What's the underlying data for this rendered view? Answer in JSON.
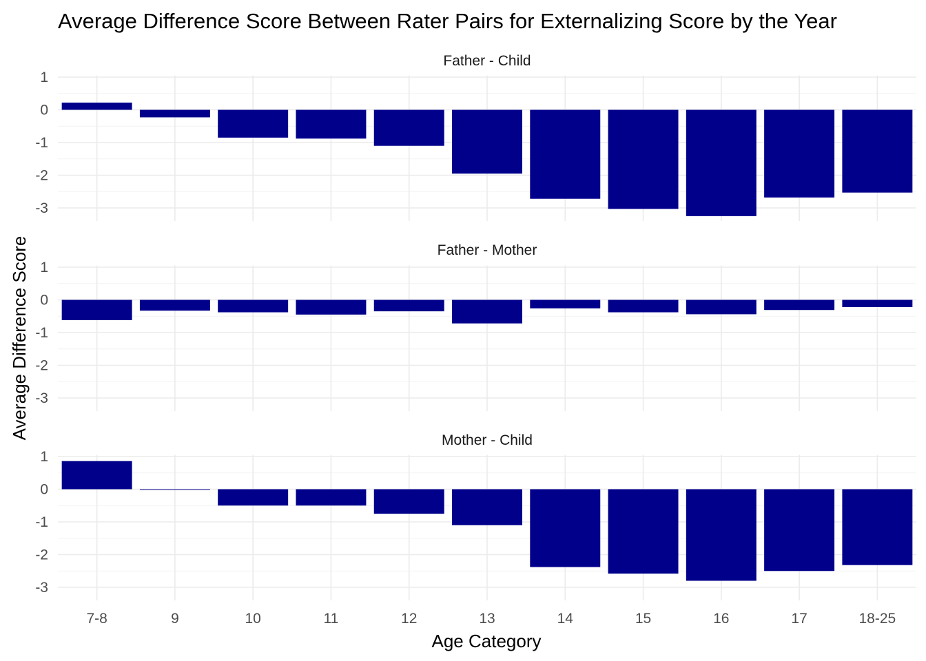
{
  "chart_data": {
    "type": "bar",
    "title": "Average Difference Score Between Rater Pairs for  Externalizing Score by the Year",
    "xlabel": "Age Category",
    "ylabel": "Average Difference Score",
    "categories": [
      "7-8",
      "9",
      "10",
      "11",
      "12",
      "13",
      "14",
      "15",
      "16",
      "17",
      "18-25"
    ],
    "y_ticks": [
      1,
      0,
      -1,
      -2,
      -3
    ],
    "y_tick_labels": [
      "1",
      "0",
      "-1",
      "-2",
      "-3"
    ],
    "ylim": [
      -3.4,
      1.05
    ],
    "grid": true,
    "bar_color": "#00008B",
    "panels": [
      {
        "name": "Father - Child",
        "values": [
          0.22,
          -0.23,
          -0.85,
          -0.88,
          -1.1,
          -1.95,
          -2.72,
          -3.03,
          -3.25,
          -2.68,
          -2.53
        ]
      },
      {
        "name": "Father - Mother",
        "values": [
          -0.62,
          -0.33,
          -0.38,
          -0.45,
          -0.35,
          -0.72,
          -0.26,
          -0.38,
          -0.44,
          -0.31,
          -0.22
        ]
      },
      {
        "name": "Mother - Child",
        "values": [
          0.86,
          -0.02,
          -0.5,
          -0.5,
          -0.75,
          -1.1,
          -2.38,
          -2.58,
          -2.8,
          -2.5,
          -2.32
        ]
      }
    ]
  }
}
